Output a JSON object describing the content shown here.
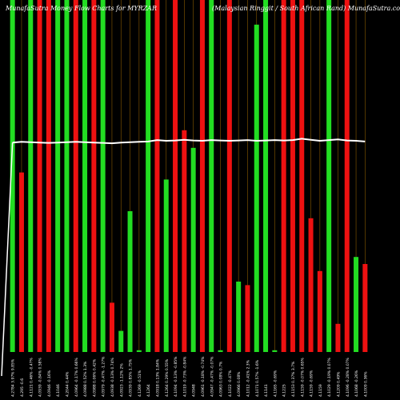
{
  "header": {
    "left": "MunafaSutra Money Flow Charts for MYRZAR",
    "right": "(Malaysian Ringgit / South African Rand) MunafaSutra.com"
  },
  "colors": {
    "background": "#000000",
    "up": "#22dd22",
    "down": "#ee1111",
    "price_line": "#ffffff",
    "grid": "#8a5a00",
    "labels": "#ffffff"
  },
  "chart_data": {
    "type": "bar",
    "title": "MunafaSutra Money Flow Charts for MYRZAR",
    "subtitle": "(Malaysian Ringgit / South African Rand) MunafaSutra.com",
    "xlabel": "",
    "ylabel": "",
    "ylim": [
      0,
      100
    ],
    "grid": true,
    "legend": "none",
    "categories": [
      "1",
      "2",
      "3",
      "4",
      "5",
      "6",
      "7",
      "8",
      "9",
      "10",
      "11",
      "12",
      "13",
      "14",
      "15",
      "16",
      "17",
      "18",
      "19",
      "20",
      "21",
      "22",
      "23",
      "24",
      "25",
      "26",
      "27",
      "28",
      "29",
      "30",
      "31",
      "32",
      "33",
      "34",
      "35",
      "36",
      "37",
      "38",
      "39",
      "40"
    ],
    "values": [
      100,
      51,
      100,
      100,
      100,
      100,
      100,
      100,
      100,
      100,
      100,
      14,
      6,
      40,
      0.5,
      100,
      100,
      49,
      100,
      63,
      58,
      100,
      100,
      0.5,
      100,
      20,
      19,
      93,
      100,
      0.5,
      100,
      100,
      100,
      38,
      23,
      100,
      8,
      100,
      27,
      25
    ],
    "colors": [
      "green",
      "red",
      "green",
      "red",
      "red",
      "green",
      "green",
      "red",
      "green",
      "red",
      "green",
      "red",
      "green",
      "green",
      "green",
      "green",
      "red",
      "green",
      "red",
      "red",
      "green",
      "red",
      "green",
      "green",
      "red",
      "green",
      "red",
      "green",
      "green",
      "green",
      "red",
      "red",
      "red",
      "red",
      "red",
      "green",
      "red",
      "red",
      "green",
      "red"
    ],
    "price_line": [
      59.5,
      59.7,
      59.6,
      59.5,
      59.4,
      59.5,
      59.6,
      59.7,
      59.6,
      59.5,
      59.4,
      59.3,
      59.5,
      59.6,
      59.7,
      59.8,
      60.2,
      60.0,
      60.1,
      60.3,
      60.1,
      60.0,
      60.2,
      60.1,
      60.0,
      60.1,
      60.2,
      60.0,
      60.1,
      60.2,
      60.1,
      60.2,
      60.6,
      60.3,
      60.0,
      60.2,
      60.4,
      60.1,
      60.0,
      59.8
    ],
    "x_labels": [
      "4.2784 3.97% 9.85%",
      "4.295 -0.6",
      "4.1121 0.46% -0.47%",
      "4.0939 -0.84% 0.58%",
      "4.0946 -0.16%",
      "4.1046",
      "4.2044 0.44%",
      "4.0964 -0.17% 0.66%",
      "4.0988 0.52% 1.3%",
      "4.0988 0.06% 0.42%",
      "4.0979 -0.47% -1.27%",
      "4.0938 -0.13% 0.74%",
      "4.0923 -1.12% 2%",
      "4.0939 0.85% 1.75%",
      "4.1269 -0.51%",
      "4.1264",
      "4.0918 0.13% 1.84%",
      "4.1264 0.29% 0.55%",
      "4.1094 -0.13% -0.85%",
      "4.1019 -0.73% -0.84%",
      "4.0948",
      "4.0961 -0.18% -0.74%",
      "4.0947 -0.47% -0.07%",
      "4.0963 0.08% 0.7%",
      "4.1022 -0.47%",
      "4.0966 0.08%",
      "4.1012 -0.41% 2.3%",
      "4.1071 0.57% -1.6%",
      "4.1141",
      "4.1165 -0.69%",
      "4.1225",
      "4.1153 0.37% 3.7%",
      "4.1159 -0.07% 0.65%",
      "4.1159 -0.69%",
      "4.1159",
      "4.1029 -0.19% 0.07%",
      "4.1209 0.49%",
      "4.1096 -0.28% 0.07%",
      "4.1068 -0.26%",
      "4.1009 0.36%"
    ]
  }
}
